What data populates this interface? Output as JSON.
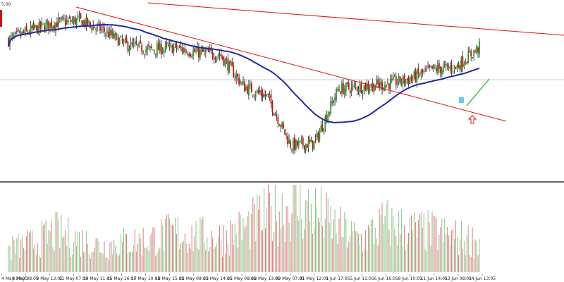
{
  "price_scale_label": "5.00",
  "colors": {
    "background": "#ffffff",
    "bar": "#1a1a1a",
    "bull_candle": "#2a9a2a",
    "bear_candle": "#cc1111",
    "moving_average": "#1f2a9c",
    "trendline": "#e01010",
    "breakout_line": "#22aa22",
    "volume_up": "#7ac27a",
    "volume_down": "#d97070",
    "separator": "#333333",
    "gridline": "#bbbbbb",
    "arrow": "#e01010",
    "highlight_box": "#4fc3d9",
    "corner_marker": "#cc1111"
  },
  "chart_data": [
    {
      "type": "candlestick",
      "panel": "price",
      "x": [
        "4 May 14:05",
        "8 May 08:05",
        "9 May 13:05",
        "11 May 07:05",
        "14 May 11:05",
        "15 May 16:05",
        "17 May 10:05",
        "18 May 15:05",
        "22 May 09:05",
        "23 May 14:05",
        "25 May 08:05",
        "28 May 13:05",
        "30 May 07:05",
        "31 May 12:05",
        "1 Jun 17:05",
        "5 Jun 11:05",
        "6 Jun 16:05",
        "8 Jun 10:05",
        "11 Jun 14:05",
        "13 Jun 08:05",
        "14 Jun 13:05"
      ],
      "close": [
        56,
        60,
        63,
        64,
        60,
        54,
        52,
        53,
        51,
        50,
        37,
        33,
        13,
        14,
        36,
        37,
        38,
        40,
        44,
        45,
        53
      ],
      "overlays": [
        "moving average",
        "descending trendline",
        "upper trendline",
        "breakout line",
        "up arrow marker"
      ],
      "grid": false
    },
    {
      "type": "bar",
      "panel": "volume",
      "x": [
        "4 May 14:05",
        "8 May 08:05",
        "9 May 13:05",
        "11 May 07:05",
        "14 May 11:05",
        "15 May 16:05",
        "17 May 10:05",
        "18 May 15:05",
        "22 May 09:05",
        "23 May 14:05",
        "25 May 08:05",
        "28 May 13:05",
        "30 May 07:05",
        "31 May 12:05",
        "1 Jun 17:05",
        "5 Jun 11:05",
        "6 Jun 16:05",
        "8 Jun 10:05",
        "11 Jun 14:05",
        "13 Jun 08:05",
        "14 Jun 13:05"
      ],
      "values": [
        32,
        40,
        54,
        45,
        36,
        42,
        45,
        55,
        50,
        48,
        60,
        78,
        92,
        84,
        60,
        45,
        68,
        58,
        55,
        48,
        42
      ]
    }
  ]
}
